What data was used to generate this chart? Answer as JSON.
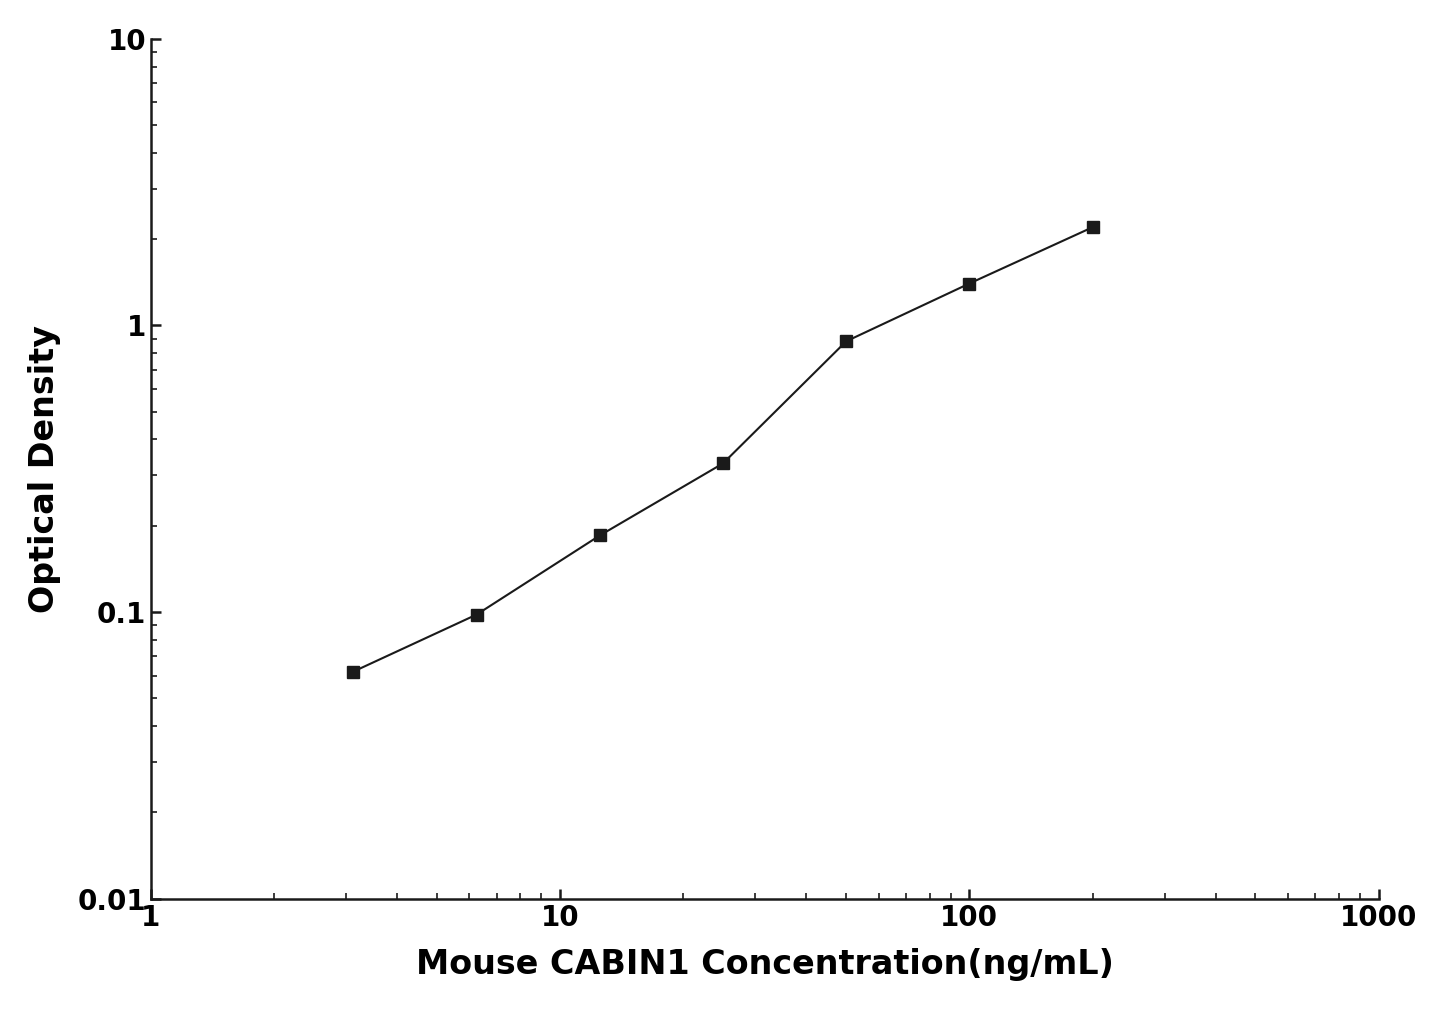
{
  "x": [
    3.125,
    6.25,
    12.5,
    25,
    50,
    100,
    200
  ],
  "y": [
    0.062,
    0.098,
    0.185,
    0.33,
    0.88,
    1.4,
    2.2
  ],
  "xlabel": "Mouse CABIN1 Concentration(ng/mL)",
  "ylabel": "Optical Density",
  "xlim_log": [
    1,
    1000
  ],
  "ylim_log": [
    0.01,
    10
  ],
  "yticks": [
    0.01,
    0.1,
    1,
    10
  ],
  "ytick_labels": [
    "0.01",
    "0.1",
    "1",
    "10"
  ],
  "xticks": [
    1,
    10,
    100,
    1000
  ],
  "xtick_labels": [
    "1",
    "10",
    "100",
    "1000"
  ],
  "line_color": "#1a1a1a",
  "marker": "s",
  "marker_size": 9,
  "marker_color": "#1a1a1a",
  "linewidth": 1.5,
  "xlabel_fontsize": 24,
  "ylabel_fontsize": 24,
  "tick_fontsize": 20,
  "background_color": "#ffffff",
  "spine_color": "#1a1a1a"
}
